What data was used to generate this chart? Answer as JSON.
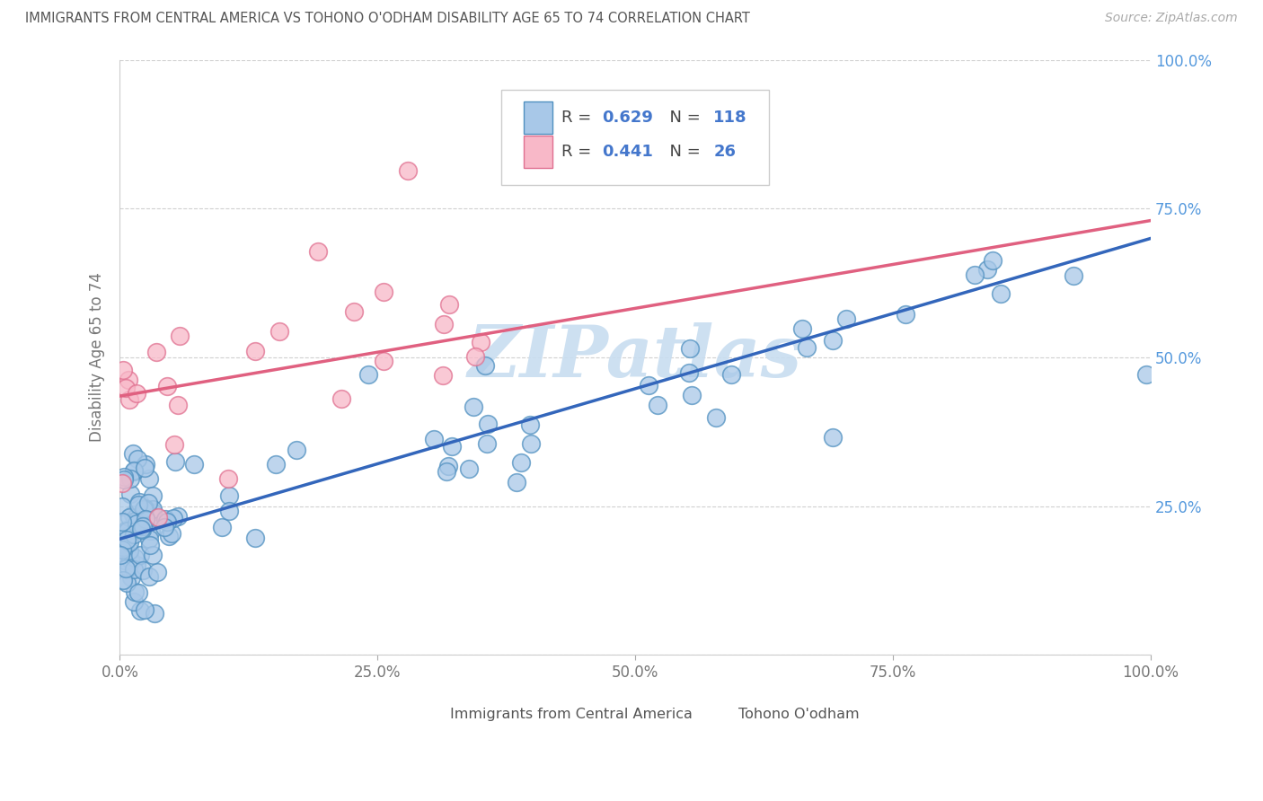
{
  "title": "IMMIGRANTS FROM CENTRAL AMERICA VS TOHONO O'ODHAM DISABILITY AGE 65 TO 74 CORRELATION CHART",
  "source": "Source: ZipAtlas.com",
  "ylabel": "Disability Age 65 to 74",
  "xlim": [
    0,
    1.0
  ],
  "ylim": [
    0,
    1.0
  ],
  "xtick_vals": [
    0.0,
    0.25,
    0.5,
    0.75,
    1.0
  ],
  "xtick_labels": [
    "0.0%",
    "25.0%",
    "50.0%",
    "75.0%",
    "100.0%"
  ],
  "ytick_vals": [
    0.0,
    0.25,
    0.5,
    0.75,
    1.0
  ],
  "ytick_labels": [
    "",
    "25.0%",
    "50.0%",
    "75.0%",
    "100.0%"
  ],
  "legend_r_blue": "0.629",
  "legend_n_blue": "118",
  "legend_r_pink": "0.441",
  "legend_n_pink": "26",
  "blue_dot_color": "#a8c8e8",
  "blue_dot_edge": "#5090c0",
  "pink_dot_color": "#f8b8c8",
  "pink_dot_edge": "#e07090",
  "blue_line_color": "#3366bb",
  "pink_line_color": "#e06080",
  "watermark_color": "#c8ddf0",
  "background_color": "#ffffff",
  "grid_color": "#d0d0d0",
  "blue_trendline_x": [
    0.0,
    1.0
  ],
  "blue_trendline_y": [
    0.195,
    0.7
  ],
  "pink_trendline_x": [
    0.0,
    1.0
  ],
  "pink_trendline_y": [
    0.435,
    0.73
  ]
}
